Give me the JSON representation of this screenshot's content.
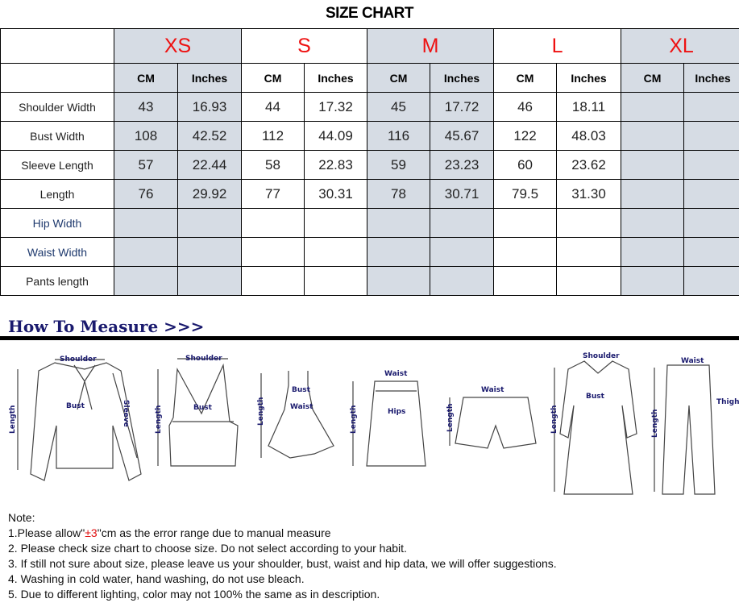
{
  "title": "SIZE CHART",
  "sizes": [
    "XS",
    "S",
    "M",
    "L",
    "XL"
  ],
  "units": [
    "CM",
    "Inches"
  ],
  "rows": [
    {
      "label": "Shoulder Width",
      "values": [
        "43",
        "16.93",
        "44",
        "17.32",
        "45",
        "17.72",
        "46",
        "18.11",
        "",
        ""
      ]
    },
    {
      "label": "Bust Width",
      "values": [
        "108",
        "42.52",
        "112",
        "44.09",
        "116",
        "45.67",
        "122",
        "48.03",
        "",
        ""
      ]
    },
    {
      "label": "Sleeve Length",
      "values": [
        "57",
        "22.44",
        "58",
        "22.83",
        "59",
        "23.23",
        "60",
        "23.62",
        "",
        ""
      ]
    },
    {
      "label": "Length",
      "values": [
        "76",
        "29.92",
        "77",
        "30.31",
        "78",
        "30.71",
        "79.5",
        "31.30",
        "",
        ""
      ]
    },
    {
      "label": "Hip Width",
      "values": [
        "",
        "",
        "",
        "",
        "",
        "",
        "",
        "",
        "",
        ""
      ]
    },
    {
      "label": "Waist Width",
      "values": [
        "",
        "",
        "",
        "",
        "",
        "",
        "",
        "",
        "",
        ""
      ]
    },
    {
      "label": "Pants length",
      "values": [
        "",
        "",
        "",
        "",
        "",
        "",
        "",
        "",
        "",
        ""
      ]
    }
  ],
  "colors": {
    "size_label": "#ee1111",
    "shaded_column": "#d6dce4",
    "heading": "#1a1a6e"
  },
  "how_to_measure": "How To Measure >>>",
  "diagram_labels": {
    "shoulder": "Shoulder",
    "bust": "Bust",
    "sleeve": "Sleeve",
    "length": "Length",
    "waist": "Waist",
    "hips": "Hips",
    "thigh": "Thigh"
  },
  "notes": {
    "heading": "Note:",
    "n1_pre": "1.Please allow\"",
    "n1_red": "±3",
    "n1_post": "\"cm as the error range due to manual measure",
    "n2": "2. Please check size chart to choose size. Do not select according to your habit.",
    "n3": "3. If still not sure about size, please leave us your shoulder, bust, waist and hip data, we will offer suggestions.",
    "n4": "4. Washing in cold water, hand washing, do not use bleach.",
    "n5": "5. Due to different lighting, color may not 100% the same as in description."
  }
}
